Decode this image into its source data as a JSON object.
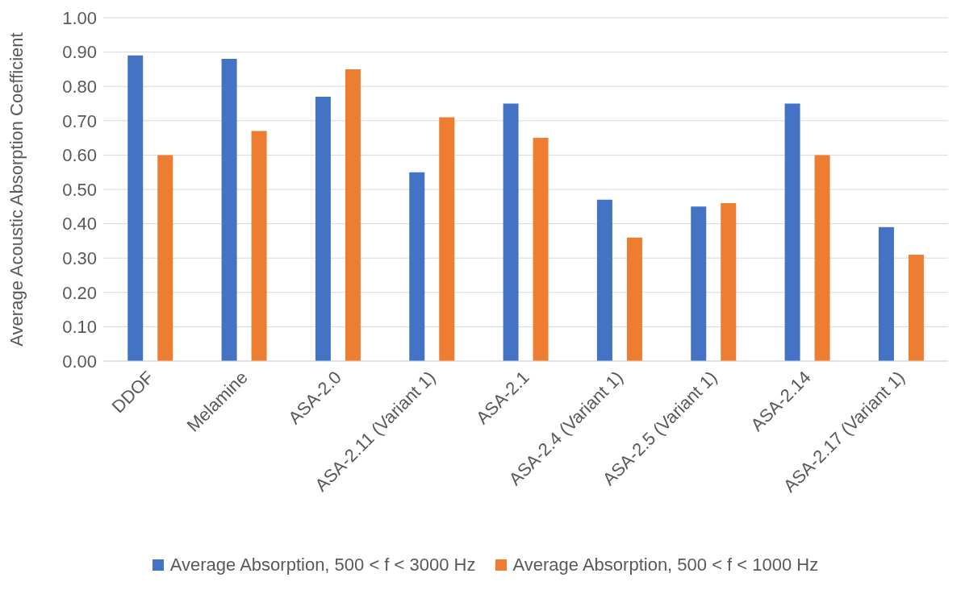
{
  "chart_data": {
    "type": "bar",
    "ylabel": "Average Acoustic Absorption Coefficient",
    "categories": [
      "DDOF",
      "Melamine",
      "ASA-2.0",
      "ASA-2.11 (Variant 1)",
      "ASA-2.1",
      "ASA-2.4 (Variant 1)",
      "ASA-2.5 (Variant 1)",
      "ASA-2.14",
      "ASA-2.17 (Variant 1)"
    ],
    "series": [
      {
        "name": "Average Absorption, 500 < f < 3000 Hz",
        "color": "#4472c4",
        "values": [
          0.89,
          0.88,
          0.77,
          0.55,
          0.75,
          0.47,
          0.45,
          0.75,
          0.39
        ]
      },
      {
        "name": "Average Absorption, 500 < f < 1000 Hz",
        "color": "#ed7d31",
        "values": [
          0.6,
          0.67,
          0.85,
          0.71,
          0.65,
          0.36,
          0.46,
          0.6,
          0.31
        ]
      }
    ],
    "ylim": [
      0,
      1
    ],
    "yticks": [
      {
        "value": 0,
        "label": "0.00"
      },
      {
        "value": 0.1,
        "label": "0.10"
      },
      {
        "value": 0.2,
        "label": "0.20"
      },
      {
        "value": 0.3,
        "label": "0.30"
      },
      {
        "value": 0.4,
        "label": "0.40"
      },
      {
        "value": 0.5,
        "label": "0.50"
      },
      {
        "value": 0.6,
        "label": "0.60"
      },
      {
        "value": 0.7,
        "label": "0.70"
      },
      {
        "value": 0.8,
        "label": "0.80"
      },
      {
        "value": 0.9,
        "label": "0.90"
      },
      {
        "value": 1,
        "label": "1.00"
      }
    ],
    "grid": "y",
    "legend": "bottom"
  }
}
